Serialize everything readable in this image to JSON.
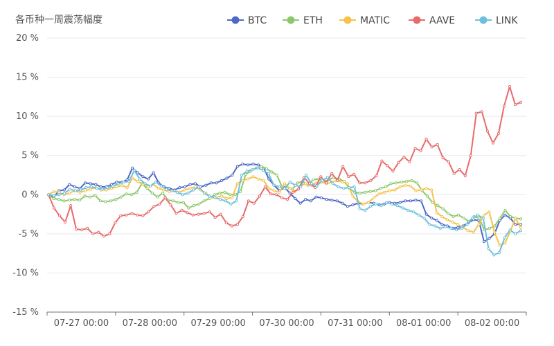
{
  "chart_data": {
    "type": "line",
    "title": "各币种一周震荡幅度",
    "x_tick_labels": [
      "07-27 00:00",
      "07-28 00:00",
      "07-29 00:00",
      "07-30 00:00",
      "07-31 00:00",
      "08-01 00:00",
      "08-02 00:00"
    ],
    "y_axis": {
      "min": -15,
      "max": 20,
      "step": 5,
      "tick_labels": [
        "-15 %",
        "-10 %",
        "-5 %",
        "0 %",
        "5 %",
        "10 %",
        "15 %",
        "20 %"
      ]
    },
    "legend_placement": "top-right",
    "series": [
      {
        "name": "BTC",
        "color": "#4e67c8",
        "values": [
          0.0,
          -0.3,
          0.5,
          0.6,
          1.3,
          1.0,
          0.8,
          1.5,
          1.4,
          1.3,
          1.0,
          1.0,
          1.3,
          1.6,
          1.6,
          1.9,
          3.4,
          2.8,
          2.3,
          2.0,
          2.8,
          1.5,
          1.0,
          0.8,
          0.6,
          0.9,
          1.0,
          1.3,
          1.4,
          1.0,
          1.2,
          1.5,
          1.5,
          1.8,
          2.1,
          2.5,
          3.6,
          3.9,
          3.8,
          3.9,
          3.8,
          3.4,
          2.0,
          1.2,
          0.5,
          0.9,
          0.2,
          -0.5,
          -1.1,
          -0.6,
          -0.8,
          -0.3,
          -0.4,
          -0.6,
          -0.7,
          -0.8,
          -1.1,
          -1.5,
          -1.3,
          -1.1,
          -1.2,
          -1.0,
          -1.1,
          -1.3,
          -1.2,
          -1.0,
          -1.1,
          -1.0,
          -0.8,
          -0.8,
          -0.7,
          -0.8,
          -2.5,
          -3.0,
          -3.3,
          -3.8,
          -4.0,
          -4.3,
          -4.2,
          -4.0,
          -3.6,
          -3.2,
          -3.3,
          -6.0,
          -5.6,
          -5.0,
          -3.3,
          -2.6,
          -3.0,
          -3.8,
          -3.8
        ]
      },
      {
        "name": "ETH",
        "color": "#8bc86a",
        "values": [
          0.0,
          -0.5,
          -0.6,
          -0.8,
          -0.7,
          -0.6,
          -0.7,
          -0.2,
          -0.3,
          -0.1,
          -0.8,
          -0.9,
          -0.8,
          -0.6,
          -0.3,
          0.1,
          0.0,
          0.3,
          1.4,
          0.8,
          0.2,
          -0.3,
          0.2,
          -0.7,
          -0.8,
          -1.0,
          -1.0,
          -1.7,
          -1.4,
          -1.2,
          -0.8,
          -0.5,
          0.0,
          0.2,
          0.3,
          0.0,
          0.0,
          0.4,
          2.6,
          3.0,
          3.4,
          3.6,
          3.3,
          2.9,
          2.5,
          1.0,
          0.8,
          0.7,
          1.5,
          1.7,
          1.2,
          1.9,
          2.0,
          1.7,
          1.9,
          2.2,
          2.0,
          1.7,
          0.8,
          0.3,
          0.2,
          0.3,
          0.4,
          0.5,
          0.8,
          1.0,
          1.4,
          1.5,
          1.6,
          1.7,
          1.8,
          1.5,
          0.5,
          -0.2,
          -1.0,
          -1.4,
          -1.8,
          -2.4,
          -2.8,
          -2.6,
          -3.0,
          -3.4,
          -2.8,
          -3.0,
          -4.5,
          -4.3,
          -4.0,
          -3.0,
          -2.0,
          -2.8,
          -3.0,
          -3.1
        ]
      },
      {
        "name": "MATIC",
        "color": "#f5c24c",
        "values": [
          0.0,
          0.4,
          0.3,
          0.0,
          0.2,
          0.5,
          0.3,
          0.5,
          0.7,
          0.9,
          0.6,
          0.6,
          0.8,
          1.0,
          1.2,
          0.9,
          2.1,
          1.7,
          1.3,
          1.0,
          1.3,
          0.8,
          0.6,
          0.4,
          0.5,
          0.3,
          0.6,
          0.8,
          1.0,
          0.6,
          0.2,
          -0.4,
          -0.3,
          -0.2,
          -0.5,
          -0.4,
          1.4,
          1.8,
          2.0,
          2.3,
          2.0,
          1.8,
          0.8,
          0.5,
          0.3,
          1.4,
          0.8,
          0.4,
          1.1,
          1.4,
          1.2,
          1.5,
          1.6,
          1.4,
          1.6,
          1.8,
          1.6,
          1.4,
          -0.2,
          -0.9,
          -1.2,
          -1.0,
          -0.4,
          0.1,
          0.3,
          0.5,
          0.6,
          1.0,
          1.2,
          1.1,
          0.5,
          0.6,
          0.8,
          0.6,
          -2.3,
          -2.8,
          -3.2,
          -3.5,
          -3.8,
          -4.2,
          -4.6,
          -4.8,
          -3.8,
          -2.6,
          -2.2,
          -4.8,
          -6.5,
          -6.2,
          -4.7,
          -3.0,
          -4.2
        ]
      },
      {
        "name": "AAVE",
        "color": "#e86a6a",
        "values": [
          0.0,
          -1.7,
          -2.7,
          -3.5,
          -1.4,
          -4.4,
          -4.5,
          -4.3,
          -5.0,
          -4.8,
          -5.3,
          -5.0,
          -3.6,
          -2.7,
          -2.6,
          -2.4,
          -2.6,
          -2.7,
          -2.2,
          -1.5,
          -1.2,
          -0.4,
          -1.3,
          -2.4,
          -2.0,
          -2.3,
          -2.6,
          -2.5,
          -2.4,
          -2.2,
          -2.9,
          -2.5,
          -3.6,
          -4.0,
          -3.8,
          -2.8,
          -0.8,
          -1.1,
          -0.2,
          1.0,
          0.1,
          0.0,
          -0.4,
          -0.6,
          0.3,
          0.7,
          2.2,
          1.4,
          0.9,
          2.3,
          1.5,
          2.7,
          1.8,
          3.6,
          2.3,
          2.6,
          1.5,
          1.5,
          1.8,
          2.4,
          4.3,
          3.7,
          3.0,
          4.1,
          4.8,
          4.2,
          5.9,
          5.6,
          7.1,
          6.1,
          6.4,
          4.7,
          4.2,
          2.7,
          3.2,
          2.4,
          5.0,
          10.4,
          10.6,
          8.1,
          6.6,
          7.8,
          11.3,
          13.8,
          11.5,
          11.8
        ]
      },
      {
        "name": "LINK",
        "color": "#6cc0dd",
        "values": [
          0.0,
          -0.1,
          0.0,
          0.2,
          0.7,
          0.5,
          0.6,
          0.9,
          1.0,
          0.8,
          0.7,
          0.9,
          1.1,
          1.4,
          1.6,
          1.7,
          3.1,
          2.0,
          1.4,
          1.1,
          1.6,
          1.1,
          0.7,
          0.5,
          0.3,
          0.0,
          0.2,
          0.6,
          1.0,
          0.2,
          -0.2,
          -0.4,
          -0.6,
          -0.8,
          -1.2,
          -0.8,
          2.5,
          3.0,
          3.2,
          3.4,
          3.1,
          2.7,
          1.2,
          1.0,
          0.8,
          1.6,
          1.2,
          1.0,
          2.5,
          1.4,
          1.1,
          1.8,
          2.2,
          1.4,
          1.0,
          0.8,
          0.9,
          1.0,
          -1.8,
          -2.0,
          -1.5,
          -1.2,
          -1.4,
          -1.0,
          -1.2,
          -1.4,
          -1.7,
          -2.0,
          -2.2,
          -2.6,
          -3.0,
          -3.8,
          -4.0,
          -4.3,
          -4.1,
          -4.3,
          -4.5,
          -4.3,
          -3.8,
          -3.0,
          -2.6,
          -3.0,
          -6.9,
          -7.7,
          -7.4,
          -5.5,
          -4.5,
          -5.0,
          -4.6
        ]
      }
    ]
  }
}
